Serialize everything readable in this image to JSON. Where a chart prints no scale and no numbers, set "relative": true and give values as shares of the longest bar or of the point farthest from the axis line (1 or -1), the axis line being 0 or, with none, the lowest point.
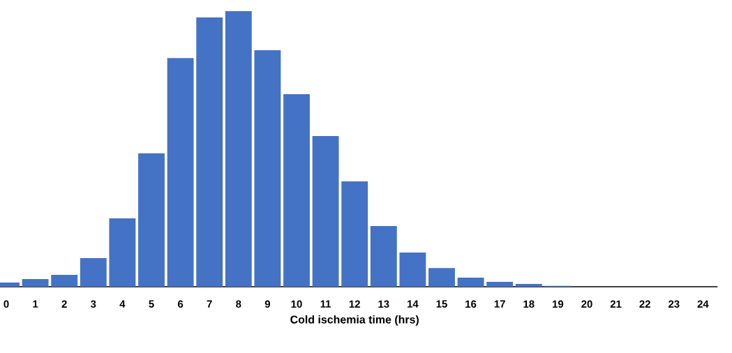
{
  "chart_data": {
    "type": "bar",
    "xlabel": "Cold ischemia time (hrs)",
    "categories": [
      "0",
      "1",
      "2",
      "3",
      "4",
      "5",
      "6",
      "7",
      "8",
      "9",
      "10",
      "11",
      "12",
      "13",
      "14",
      "15",
      "16",
      "17",
      "18",
      "19",
      "20",
      "21",
      "22",
      "23",
      "24"
    ],
    "values": [
      0.015,
      0.028,
      0.043,
      0.104,
      0.248,
      0.484,
      0.83,
      0.977,
      1,
      0.858,
      0.699,
      0.547,
      0.382,
      0.22,
      0.124,
      0.068,
      0.033,
      0.018,
      0.01,
      0.003,
      0,
      0,
      0,
      0,
      0
    ],
    "color": "#4472c4",
    "relative": true
  }
}
